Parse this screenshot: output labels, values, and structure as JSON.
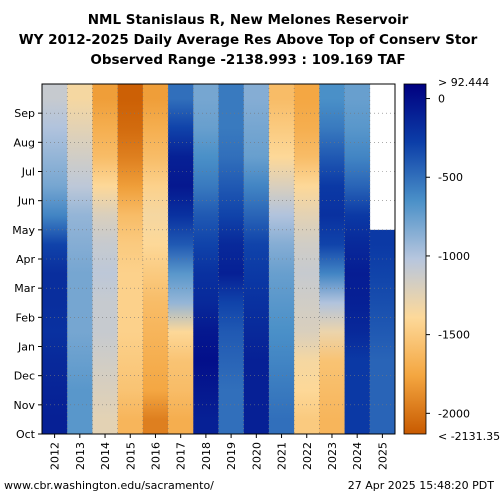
{
  "chart_data": {
    "type": "heatmap",
    "title": [
      "NML Stanislaus R, New Melones Reservoir",
      "WY 2012-2025 Daily Average Res Above Top of Conserv Stor",
      "Observed Range -2138.993 : 109.169 TAF"
    ],
    "x_categories": [
      "2012",
      "2013",
      "2014",
      "2015",
      "2016",
      "2017",
      "2018",
      "2019",
      "2020",
      "2021",
      "2022",
      "2023",
      "2024",
      "2025"
    ],
    "y_categories": [
      "Oct",
      "Nov",
      "Dec",
      "Jan",
      "Feb",
      "Mar",
      "Apr",
      "May",
      "Jun",
      "Jul",
      "Aug",
      "Sep"
    ],
    "units": "TAF",
    "observed_range": [
      -2138.993,
      109.169
    ],
    "colorbar": {
      "vmin": -2131.357,
      "vmax": 92.444,
      "top_label": "> 92.444",
      "bottom_label": "< -2131.357",
      "ticks": [
        0,
        -500,
        -1000,
        -1500,
        -2000
      ],
      "palette": [
        "#c85a00",
        "#f4a640",
        "#fdd99a",
        "#b7c6de",
        "#4a90c8",
        "#0c3ea8",
        "#000080"
      ]
    },
    "grid": true,
    "series": [
      {
        "name": "2012",
        "values": [
          -100,
          -120,
          -150,
          -200,
          -180,
          -180,
          -300,
          -600,
          -800,
          -900,
          -1000,
          -1100
        ]
      },
      {
        "name": "2013",
        "values": [
          -700,
          -700,
          -750,
          -800,
          -800,
          -800,
          -850,
          -900,
          -1050,
          -1150,
          -1250,
          -1350
        ]
      },
      {
        "name": "2014",
        "values": [
          -1250,
          -1200,
          -1150,
          -1100,
          -1100,
          -1050,
          -1100,
          -1200,
          -1400,
          -1600,
          -1700,
          -1800
        ]
      },
      {
        "name": "2015",
        "values": [
          -1650,
          -1550,
          -1500,
          -1450,
          -1450,
          -1450,
          -1500,
          -1600,
          -1800,
          -1950,
          -2050,
          -2100
        ]
      },
      {
        "name": "2016",
        "values": [
          -1950,
          -1750,
          -1700,
          -1650,
          -1600,
          -1500,
          -1400,
          -1350,
          -1450,
          -1600,
          -1700,
          -1800
        ]
      },
      {
        "name": "2017",
        "values": [
          -1700,
          -1600,
          -1550,
          -1400,
          -900,
          -700,
          -400,
          -200,
          -50,
          -100,
          -300,
          -500
        ]
      },
      {
        "name": "2018",
        "values": [
          -100,
          -50,
          0,
          -50,
          -150,
          -200,
          -300,
          -400,
          -550,
          -650,
          -750,
          -800
        ]
      },
      {
        "name": "2019",
        "values": [
          -500,
          -500,
          -450,
          -400,
          -300,
          -100,
          -150,
          -300,
          -400,
          -500,
          -550,
          -550
        ]
      },
      {
        "name": "2020",
        "values": [
          -100,
          -100,
          -100,
          -150,
          -200,
          -250,
          -300,
          -450,
          -600,
          -750,
          -800,
          -850
        ]
      },
      {
        "name": "2021",
        "values": [
          -500,
          -550,
          -600,
          -650,
          -700,
          -750,
          -850,
          -1000,
          -1200,
          -1400,
          -1500,
          -1600
        ]
      },
      {
        "name": "2022",
        "values": [
          -1500,
          -1400,
          -1350,
          -1200,
          -1150,
          -1100,
          -1150,
          -1250,
          -1400,
          -1600,
          -1700,
          -1750
        ]
      },
      {
        "name": "2023",
        "values": [
          -1650,
          -1600,
          -1550,
          -1300,
          -1000,
          -600,
          -300,
          -200,
          -250,
          -400,
          -550,
          -650
        ]
      },
      {
        "name": "2024",
        "values": [
          -250,
          -250,
          -250,
          -150,
          -100,
          -80,
          -150,
          -250,
          -450,
          -600,
          -700,
          -750
        ]
      },
      {
        "name": "2025",
        "values": [
          -450,
          -450,
          -450,
          -400,
          -350,
          -300,
          -250,
          null,
          null,
          null,
          null,
          null
        ]
      }
    ]
  },
  "footer": {
    "left": "www.cbr.washington.edu/sacramento/",
    "right": "27 Apr 2025 15:48:20 PDT"
  }
}
